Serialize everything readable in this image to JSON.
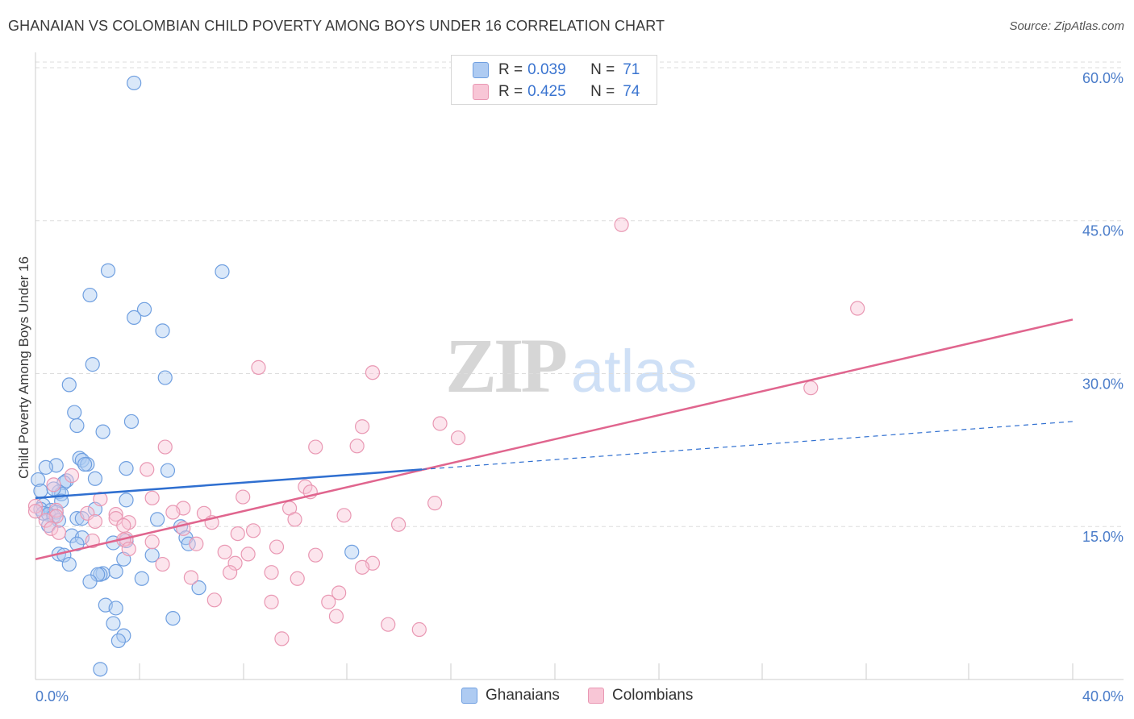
{
  "header": {
    "title": "GHANAIAN VS COLOMBIAN CHILD POVERTY AMONG BOYS UNDER 16 CORRELATION CHART",
    "source": "Source: ZipAtlas.com"
  },
  "watermark": {
    "zip": "ZIP",
    "atlas": "atlas"
  },
  "legend": {
    "rows": [
      {
        "r_label": "R =",
        "r_value": "0.039",
        "n_label": "N =",
        "n_value": "71"
      },
      {
        "r_label": "R =",
        "r_value": "0.425",
        "n_label": "N =",
        "n_value": "74"
      }
    ]
  },
  "bottom_legend": {
    "series1": "Ghanaians",
    "series2": "Colombians"
  },
  "colors": {
    "blue_fill": "#aecbf2",
    "blue_stroke": "#6f9fe0",
    "blue_line": "#2f6fd0",
    "pink_fill": "#f8c6d6",
    "pink_stroke": "#e998b3",
    "pink_line": "#e0658e",
    "tick_text": "#4a7cc9",
    "grid": "#dddddd"
  },
  "chart_data": {
    "type": "scatter",
    "title": "GHANAIAN VS COLOMBIAN CHILD POVERTY AMONG BOYS UNDER 16 CORRELATION CHART",
    "xlabel": "",
    "ylabel": "Child Poverty Among Boys Under 16",
    "xlim": [
      0,
      40
    ],
    "ylim": [
      0,
      61.5
    ],
    "x_tick_labels": [
      "0.0%",
      "40.0%"
    ],
    "y_ticks": [
      15,
      30,
      45,
      60
    ],
    "y_tick_labels": [
      "15.0%",
      "30.0%",
      "45.0%",
      "60.0%"
    ],
    "series": [
      {
        "name": "Ghanaians",
        "r": 0.039,
        "n": 71,
        "trend": {
          "solid": [
            [
              0,
              17.8
            ],
            [
              14.9,
              20.6
            ]
          ],
          "dashed": [
            [
              14.9,
              20.6
            ],
            [
              40,
              25.3
            ]
          ]
        },
        "points": [
          [
            3.8,
            58.5
          ],
          [
            2.8,
            40.1
          ],
          [
            7.2,
            40.0
          ],
          [
            2.1,
            37.7
          ],
          [
            4.2,
            36.3
          ],
          [
            3.8,
            35.5
          ],
          [
            4.9,
            34.2
          ],
          [
            2.2,
            30.9
          ],
          [
            5.0,
            29.6
          ],
          [
            1.3,
            28.9
          ],
          [
            1.5,
            26.2
          ],
          [
            1.6,
            24.9
          ],
          [
            2.6,
            24.3
          ],
          [
            3.7,
            25.3
          ],
          [
            1.7,
            21.7
          ],
          [
            1.8,
            21.5
          ],
          [
            2.0,
            21.1
          ],
          [
            1.9,
            21.1
          ],
          [
            0.8,
            21.0
          ],
          [
            3.5,
            20.7
          ],
          [
            5.1,
            20.5
          ],
          [
            0.4,
            20.8
          ],
          [
            2.3,
            19.7
          ],
          [
            1.2,
            19.5
          ],
          [
            1.1,
            19.3
          ],
          [
            0.1,
            19.6
          ],
          [
            0.2,
            18.5
          ],
          [
            0.9,
            18.4
          ],
          [
            1.0,
            18.2
          ],
          [
            0.7,
            18.7
          ],
          [
            1.0,
            17.5
          ],
          [
            3.5,
            17.6
          ],
          [
            0.3,
            17.1
          ],
          [
            0.2,
            16.7
          ],
          [
            0.6,
            16.6
          ],
          [
            0.8,
            16.4
          ],
          [
            0.3,
            16.3
          ],
          [
            0.5,
            16.2
          ],
          [
            0.7,
            16.0
          ],
          [
            2.3,
            16.7
          ],
          [
            1.6,
            15.8
          ],
          [
            1.8,
            15.8
          ],
          [
            0.9,
            15.6
          ],
          [
            4.7,
            15.7
          ],
          [
            0.5,
            15.1
          ],
          [
            5.6,
            15.0
          ],
          [
            1.4,
            14.1
          ],
          [
            1.8,
            13.9
          ],
          [
            3.5,
            13.6
          ],
          [
            3.0,
            13.4
          ],
          [
            1.6,
            13.3
          ],
          [
            5.8,
            13.9
          ],
          [
            5.9,
            13.3
          ],
          [
            0.9,
            12.3
          ],
          [
            1.1,
            12.2
          ],
          [
            3.4,
            11.8
          ],
          [
            4.5,
            12.2
          ],
          [
            12.2,
            12.5
          ],
          [
            1.3,
            11.3
          ],
          [
            2.6,
            10.4
          ],
          [
            3.1,
            10.6
          ],
          [
            2.5,
            10.3
          ],
          [
            2.4,
            10.3
          ],
          [
            4.1,
            9.9
          ],
          [
            2.1,
            9.6
          ],
          [
            6.3,
            9.0
          ],
          [
            2.7,
            7.3
          ],
          [
            3.1,
            7.0
          ],
          [
            3.0,
            5.5
          ],
          [
            5.3,
            6.0
          ],
          [
            3.4,
            4.3
          ],
          [
            3.2,
            3.8
          ],
          [
            2.5,
            1.0
          ]
        ]
      },
      {
        "name": "Colombians",
        "r": 0.425,
        "n": 74,
        "trend": {
          "solid": [
            [
              0,
              11.8
            ],
            [
              40,
              35.3
            ]
          ]
        },
        "points": [
          [
            22.6,
            44.6
          ],
          [
            31.7,
            36.4
          ],
          [
            8.6,
            30.6
          ],
          [
            13.0,
            30.1
          ],
          [
            29.9,
            28.6
          ],
          [
            15.6,
            25.1
          ],
          [
            12.6,
            24.8
          ],
          [
            16.3,
            23.7
          ],
          [
            5.0,
            22.8
          ],
          [
            10.8,
            22.8
          ],
          [
            12.4,
            22.9
          ],
          [
            4.3,
            20.6
          ],
          [
            1.4,
            20.0
          ],
          [
            0.7,
            19.1
          ],
          [
            10.4,
            18.9
          ],
          [
            10.6,
            18.4
          ],
          [
            8.0,
            17.9
          ],
          [
            4.5,
            17.8
          ],
          [
            2.5,
            17.7
          ],
          [
            15.4,
            17.3
          ],
          [
            0.0,
            17.0
          ],
          [
            9.8,
            16.8
          ],
          [
            5.7,
            16.8
          ],
          [
            0.8,
            16.6
          ],
          [
            0.0,
            16.5
          ],
          [
            5.3,
            16.4
          ],
          [
            6.5,
            16.3
          ],
          [
            2.0,
            16.3
          ],
          [
            3.1,
            16.2
          ],
          [
            11.9,
            16.1
          ],
          [
            0.8,
            16.0
          ],
          [
            3.1,
            15.8
          ],
          [
            10.0,
            15.7
          ],
          [
            0.4,
            15.6
          ],
          [
            2.3,
            15.5
          ],
          [
            3.6,
            15.4
          ],
          [
            6.8,
            15.4
          ],
          [
            14.0,
            15.2
          ],
          [
            3.4,
            15.1
          ],
          [
            0.6,
            14.8
          ],
          [
            5.7,
            14.8
          ],
          [
            8.4,
            14.6
          ],
          [
            0.9,
            14.4
          ],
          [
            7.8,
            14.3
          ],
          [
            3.5,
            13.8
          ],
          [
            3.4,
            13.7
          ],
          [
            2.2,
            13.6
          ],
          [
            4.5,
            13.5
          ],
          [
            6.2,
            13.3
          ],
          [
            9.3,
            13.0
          ],
          [
            3.6,
            12.8
          ],
          [
            7.3,
            12.5
          ],
          [
            8.2,
            12.3
          ],
          [
            10.8,
            12.2
          ],
          [
            7.7,
            11.4
          ],
          [
            4.9,
            11.3
          ],
          [
            13.0,
            11.4
          ],
          [
            12.6,
            11.0
          ],
          [
            9.1,
            10.5
          ],
          [
            7.5,
            10.5
          ],
          [
            6.0,
            10.0
          ],
          [
            10.1,
            9.9
          ],
          [
            11.7,
            8.5
          ],
          [
            6.9,
            7.8
          ],
          [
            9.1,
            7.6
          ],
          [
            11.3,
            7.6
          ],
          [
            11.6,
            6.2
          ],
          [
            13.6,
            5.4
          ],
          [
            14.8,
            4.9
          ],
          [
            9.5,
            4.0
          ]
        ]
      }
    ]
  }
}
